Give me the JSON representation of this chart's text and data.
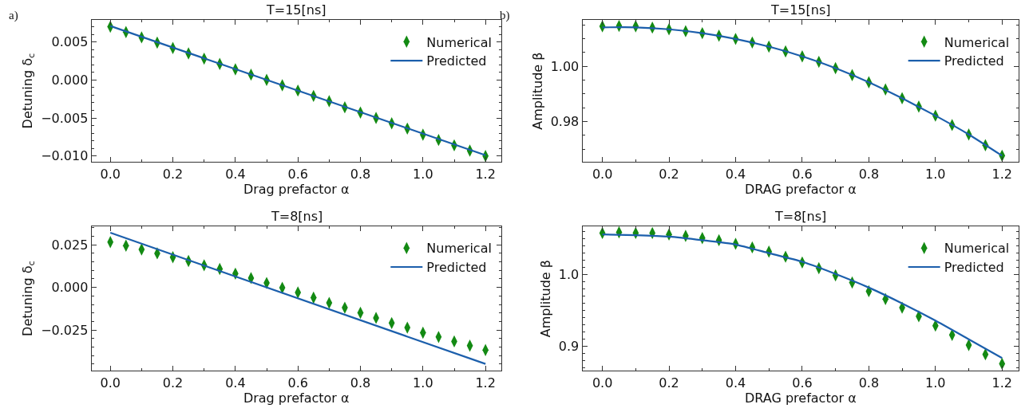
{
  "chart_data": [
    {
      "type": "line",
      "title": "T=15[ns]",
      "xlabel": "Drag prefactor α",
      "ylabel": "Detuning δ$_{c}$",
      "annotations": [
        "a)"
      ],
      "legend": "top right",
      "xlim": [
        -0.06,
        1.25
      ],
      "xticks": [
        {
          "value": 0,
          "label": "0.0"
        },
        {
          "value": 0.2,
          "label": "0.2"
        },
        {
          "value": 0.4,
          "label": "0.4"
        },
        {
          "value": 0.6,
          "label": "0.6"
        },
        {
          "value": 0.8,
          "label": "0.8"
        },
        {
          "value": 1.0,
          "label": "1.0"
        },
        {
          "value": 1.2,
          "label": "1.2"
        }
      ],
      "ylim": [
        -0.0108,
        0.0079
      ],
      "yticks": [
        {
          "value": -0.01,
          "label": "−0.010"
        },
        {
          "value": -0.005,
          "label": "−0.005"
        },
        {
          "value": 0,
          "label": "0.000"
        },
        0.005
      ],
      "series": [
        {
          "name": "Numerical",
          "type": "scatter",
          "marker": "diamond",
          "color": "#138a13",
          "x": [
            0,
            0.05,
            0.1,
            0.15,
            0.2,
            0.25,
            0.3,
            0.35,
            0.4,
            0.45,
            0.5,
            0.55,
            0.6,
            0.65,
            0.7,
            0.75,
            0.8,
            0.85,
            0.9,
            0.95,
            1.0,
            1.05,
            1.1,
            1.15,
            1.2
          ],
          "values": [
            0.007,
            0.0063,
            0.0056,
            0.0049,
            0.0042,
            0.0035,
            0.0028,
            0.0021,
            0.0014,
            0.0007,
            0.0,
            -0.0007,
            -0.0014,
            -0.0021,
            -0.0028,
            -0.0036,
            -0.0043,
            -0.005,
            -0.0057,
            -0.0064,
            -0.0072,
            -0.0079,
            -0.0086,
            -0.0093,
            -0.01
          ]
        },
        {
          "name": "Predicted",
          "color": "#1c5fac",
          "x": [
            0,
            1.2
          ],
          "values": [
            0.0071,
            -0.0099
          ]
        }
      ]
    },
    {
      "type": "line",
      "title": "T=15[ns]",
      "xlabel": "DRAG prefactor α",
      "ylabel": "Amplitude β",
      "annotations": [
        "b)"
      ],
      "legend": "top right",
      "xlim": [
        -0.06,
        1.25
      ],
      "xticks": [
        {
          "value": 0,
          "label": "0.0"
        },
        {
          "value": 0.2,
          "label": "0.2"
        },
        {
          "value": 0.4,
          "label": "0.4"
        },
        {
          "value": 0.6,
          "label": "0.6"
        },
        {
          "value": 0.8,
          "label": "0.8"
        },
        {
          "value": 1.0,
          "label": "1.0"
        },
        {
          "value": 1.2,
          "label": "1.2"
        }
      ],
      "ylim": [
        0.9653,
        1.0168
      ],
      "yticks": [
        0.98,
        {
          "value": 1.0,
          "label": "1.00"
        }
      ],
      "series": [
        {
          "name": "Numerical",
          "type": "scatter",
          "marker": "diamond",
          "color": "#138a13",
          "x": [
            0,
            0.05,
            0.1,
            0.15,
            0.2,
            0.25,
            0.3,
            0.35,
            0.4,
            0.45,
            0.5,
            0.55,
            0.6,
            0.65,
            0.7,
            0.75,
            0.8,
            0.85,
            0.9,
            0.95,
            1.0,
            1.05,
            1.1,
            1.15,
            1.2
          ],
          "values": [
            1.0145,
            1.0146,
            1.0145,
            1.014,
            1.0134,
            1.0127,
            1.012,
            1.0111,
            1.0099,
            1.0086,
            1.0071,
            1.0054,
            1.0036,
            1.0016,
            0.9993,
            0.9968,
            0.9942,
            0.9916,
            0.9884,
            0.9854,
            0.9821,
            0.9787,
            0.9753,
            0.9714,
            0.9676
          ]
        },
        {
          "name": "Predicted",
          "color": "#1c5fac",
          "x": [
            0,
            0.1,
            0.2,
            0.3,
            0.4,
            0.5,
            0.6,
            0.7,
            0.8,
            0.9,
            1.0,
            1.1,
            1.2
          ],
          "values": [
            1.0141,
            1.0141,
            1.0134,
            1.012,
            1.0099,
            1.0071,
            1.0036,
            0.9993,
            0.9942,
            0.9884,
            0.9821,
            0.9753,
            0.9676
          ]
        }
      ]
    },
    {
      "type": "line",
      "title": "T=8[ns]",
      "xlabel": "Drag prefactor α",
      "ylabel": "Detuning δ$_{c}$",
      "legend": "top right",
      "xlim": [
        -0.06,
        1.25
      ],
      "xticks": [
        {
          "value": 0,
          "label": "0.0"
        },
        {
          "value": 0.2,
          "label": "0.2"
        },
        {
          "value": 0.4,
          "label": "0.4"
        },
        {
          "value": 0.6,
          "label": "0.6"
        },
        {
          "value": 0.8,
          "label": "0.8"
        },
        {
          "value": 1.0,
          "label": "1.0"
        },
        {
          "value": 1.2,
          "label": "1.2"
        }
      ],
      "ylim": [
        -0.049,
        0.0359
      ],
      "yticks": [
        {
          "value": -0.025,
          "label": "−0.025"
        },
        {
          "value": 0,
          "label": "0.000"
        },
        0.025
      ],
      "series": [
        {
          "name": "Numerical",
          "type": "scatter",
          "marker": "diamond",
          "color": "#138a13",
          "x": [
            0,
            0.05,
            0.1,
            0.15,
            0.2,
            0.25,
            0.3,
            0.35,
            0.4,
            0.45,
            0.5,
            0.55,
            0.6,
            0.65,
            0.7,
            0.75,
            0.8,
            0.85,
            0.9,
            0.95,
            1.0,
            1.05,
            1.1,
            1.15,
            1.2
          ],
          "values": [
            0.0266,
            0.0245,
            0.0223,
            0.02,
            0.0177,
            0.0155,
            0.013,
            0.0108,
            0.0081,
            0.0055,
            0.0026,
            -0.0002,
            -0.003,
            -0.006,
            -0.0091,
            -0.0119,
            -0.0149,
            -0.0179,
            -0.0209,
            -0.0236,
            -0.0266,
            -0.0291,
            -0.0317,
            -0.0342,
            -0.0368
          ]
        },
        {
          "name": "Predicted",
          "color": "#1c5fac",
          "x": [
            0,
            1.2
          ],
          "values": [
            0.0321,
            -0.0449
          ]
        }
      ]
    },
    {
      "type": "line",
      "title": "T=8[ns]",
      "xlabel": "DRAG prefactor α",
      "ylabel": "Amplitude β",
      "legend": "top right",
      "xlim": [
        -0.06,
        1.25
      ],
      "xticks": [
        {
          "value": 0,
          "label": "0.0"
        },
        {
          "value": 0.2,
          "label": "0.2"
        },
        {
          "value": 0.4,
          "label": "0.4"
        },
        {
          "value": 0.6,
          "label": "0.6"
        },
        {
          "value": 0.8,
          "label": "0.8"
        },
        {
          "value": 1.0,
          "label": "1.0"
        },
        {
          "value": 1.2,
          "label": "1.2"
        }
      ],
      "ylim": [
        0.866,
        1.0674
      ],
      "yticks": [
        0.9,
        {
          "value": 1.0,
          "label": "1.0"
        }
      ],
      "series": [
        {
          "name": "Numerical",
          "type": "scatter",
          "marker": "diamond",
          "color": "#138a13",
          "x": [
            0,
            0.05,
            0.1,
            0.15,
            0.2,
            0.25,
            0.3,
            0.35,
            0.4,
            0.45,
            0.5,
            0.55,
            0.6,
            0.65,
            0.7,
            0.75,
            0.8,
            0.85,
            0.9,
            0.95,
            1.0,
            1.05,
            1.1,
            1.15,
            1.2
          ],
          "values": [
            1.058,
            1.059,
            1.058,
            1.058,
            1.056,
            1.054,
            1.051,
            1.048,
            1.043,
            1.038,
            1.032,
            1.025,
            1.017,
            1.009,
            0.999,
            0.989,
            0.977,
            0.966,
            0.954,
            0.942,
            0.929,
            0.916,
            0.902,
            0.889,
            0.876
          ]
        },
        {
          "name": "Predicted",
          "color": "#1c5fac",
          "x": [
            0,
            0.1,
            0.2,
            0.3,
            0.4,
            0.5,
            0.6,
            0.7,
            0.8,
            0.9,
            1.0,
            1.1,
            1.2
          ],
          "values": [
            1.056,
            1.055,
            1.053,
            1.048,
            1.042,
            1.03,
            1.018,
            1.001,
            0.982,
            0.96,
            0.936,
            0.91,
            0.884
          ]
        }
      ]
    }
  ]
}
